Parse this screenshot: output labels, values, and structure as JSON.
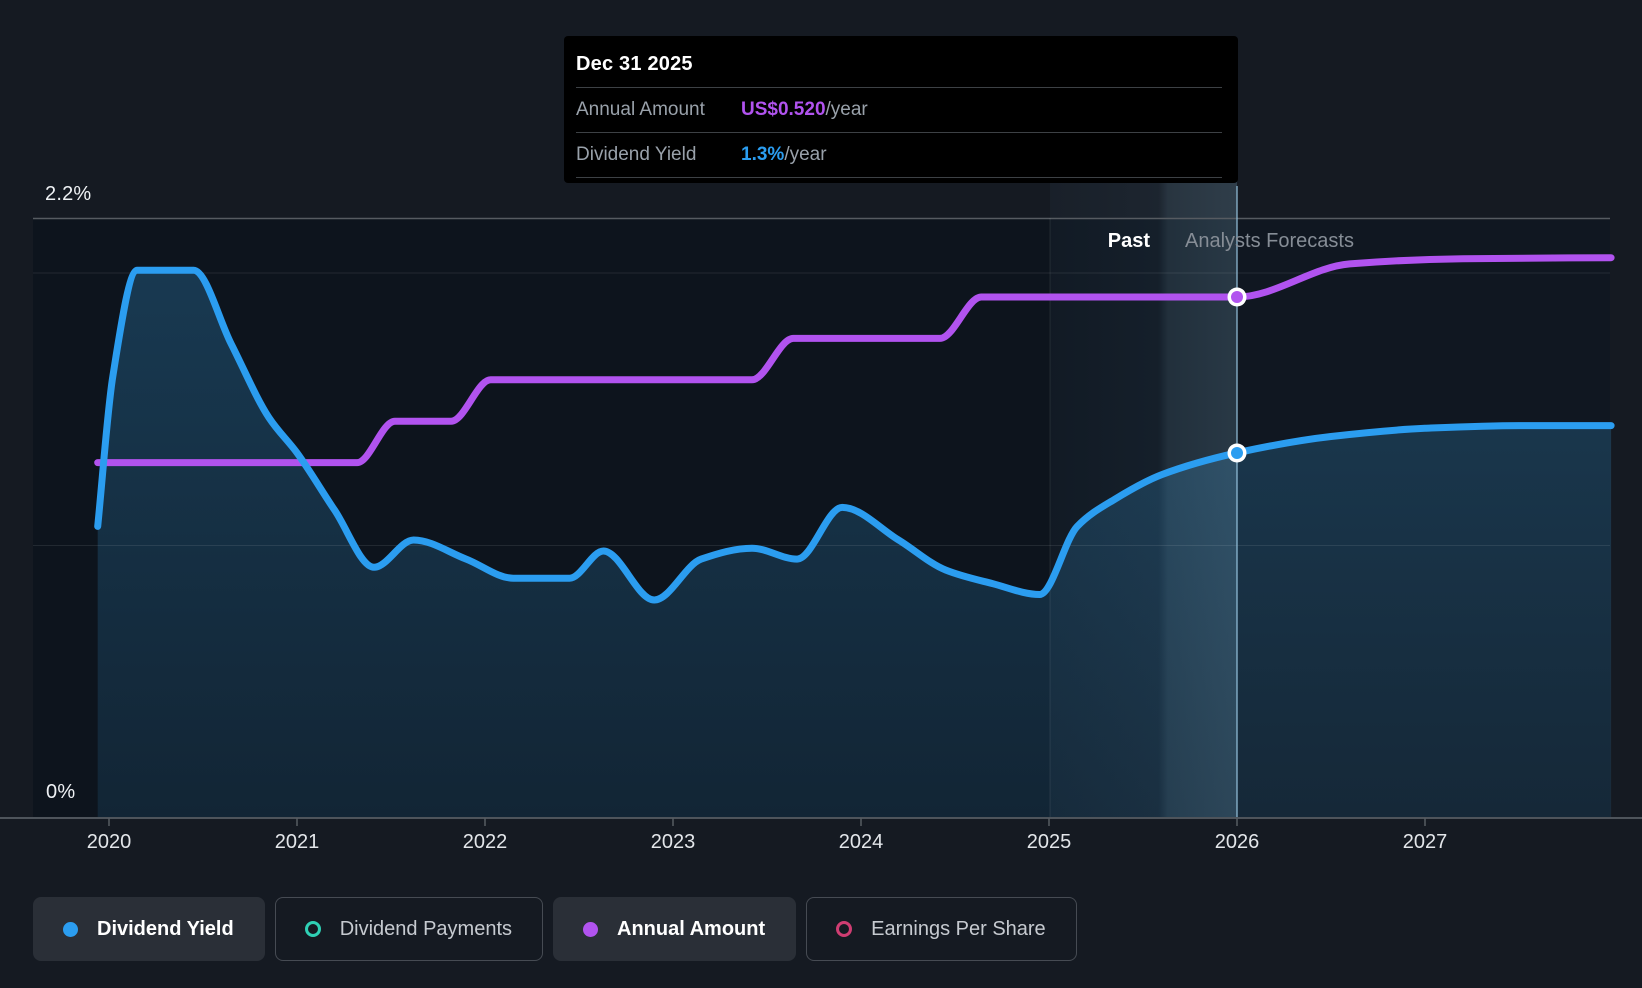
{
  "page": {
    "background": "#151a22"
  },
  "y_axis": {
    "top_label": "2.2%",
    "bottom_label": "0%"
  },
  "x_axis": {
    "years": [
      "2020",
      "2021",
      "2022",
      "2023",
      "2024",
      "2025",
      "2026",
      "2027"
    ]
  },
  "period_labels": {
    "past": "Past",
    "forecast": "Analysts Forecasts"
  },
  "tooltip": {
    "title": "Dec 31 2025",
    "rows": [
      {
        "label": "Annual Amount",
        "value": "US$0.520",
        "suffix": "/year",
        "color": "#b153ef"
      },
      {
        "label": "Dividend Yield",
        "value": "1.3%",
        "suffix": "/year",
        "color": "#2b9df0"
      }
    ]
  },
  "legend": {
    "items": [
      {
        "label": "Dividend Yield",
        "color": "#2b9df0",
        "active": true,
        "icon": "filled-dot"
      },
      {
        "label": "Dividend Payments",
        "color": "#2fd0b5",
        "active": false,
        "icon": "outline-ring"
      },
      {
        "label": "Annual Amount",
        "color": "#b153ef",
        "active": true,
        "icon": "filled-dot"
      },
      {
        "label": "Earnings Per Share",
        "color": "#cf3d72",
        "active": false,
        "icon": "outline-ring"
      }
    ]
  },
  "chart_data": {
    "type": "line",
    "title": "Dividend history and forecast",
    "x": {
      "unit": "year",
      "range": [
        2019.93,
        2028.0
      ],
      "ticks": [
        2020,
        2021,
        2022,
        2023,
        2024,
        2025,
        2026,
        2027
      ]
    },
    "past_forecast_divider_x": 2026.0,
    "yield_axis": {
      "unit": "%",
      "range": [
        0,
        2.2
      ],
      "labeled_ticks": [
        "2.2%",
        "0%"
      ],
      "gridlines_pct": [
        0,
        1.0,
        2.0,
        2.2
      ],
      "grid": true
    },
    "legend_position": "bottom",
    "series": [
      {
        "name": "Dividend Yield",
        "unit": "%",
        "color": "#2b9df0",
        "area_fill": true,
        "points": [
          [
            2019.94,
            1.07
          ],
          [
            2020.02,
            1.62
          ],
          [
            2020.15,
            2.01
          ],
          [
            2020.45,
            2.01
          ],
          [
            2020.65,
            1.74
          ],
          [
            2020.85,
            1.47
          ],
          [
            2021.0,
            1.34
          ],
          [
            2021.2,
            1.13
          ],
          [
            2021.41,
            0.92
          ],
          [
            2021.62,
            1.02
          ],
          [
            2021.9,
            0.95
          ],
          [
            2022.15,
            0.88
          ],
          [
            2022.45,
            0.88
          ],
          [
            2022.63,
            0.98
          ],
          [
            2022.9,
            0.8
          ],
          [
            2023.15,
            0.95
          ],
          [
            2023.42,
            0.99
          ],
          [
            2023.66,
            0.95
          ],
          [
            2023.9,
            1.14
          ],
          [
            2024.2,
            1.02
          ],
          [
            2024.45,
            0.91
          ],
          [
            2024.7,
            0.86
          ],
          [
            2024.95,
            0.82
          ],
          [
            2025.15,
            1.07
          ],
          [
            2025.35,
            1.17
          ],
          [
            2025.6,
            1.26
          ],
          [
            2026.0,
            1.34
          ],
          [
            2026.5,
            1.4
          ],
          [
            2027.0,
            1.43
          ],
          [
            2027.5,
            1.44
          ],
          [
            2027.99,
            1.44
          ]
        ]
      },
      {
        "name": "Annual Amount",
        "unit": "US$/year",
        "color": "#b153ef",
        "points": [
          [
            2019.94,
            0.36
          ],
          [
            2021.32,
            0.36
          ],
          [
            2021.52,
            0.4
          ],
          [
            2021.82,
            0.4
          ],
          [
            2022.03,
            0.44
          ],
          [
            2023.42,
            0.44
          ],
          [
            2023.64,
            0.48
          ],
          [
            2024.42,
            0.48
          ],
          [
            2024.64,
            0.52
          ],
          [
            2026.0,
            0.52
          ],
          [
            2026.6,
            0.552
          ],
          [
            2027.2,
            0.557
          ],
          [
            2027.99,
            0.558
          ]
        ]
      }
    ],
    "markers": [
      {
        "series": "Annual Amount",
        "x": 2026.0,
        "value_label": "US$0.520/year"
      },
      {
        "series": "Dividend Yield",
        "x": 2026.0,
        "value_label": "1.3%/year"
      }
    ]
  }
}
